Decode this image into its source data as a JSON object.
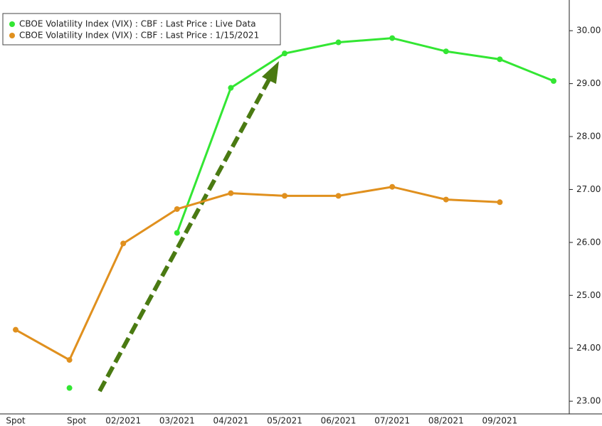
{
  "chart_data": {
    "type": "line",
    "categories": [
      "Spot",
      "Spot",
      "02/2021",
      "03/2021",
      "04/2021",
      "05/2021",
      "06/2021",
      "07/2021",
      "08/2021",
      "09/2021",
      null
    ],
    "series": [
      {
        "name": "CBOE Volatility Index (VIX) : CBF : Last Price : Live Data",
        "color": "#33e633",
        "values": [
          null,
          23.25,
          null,
          26.18,
          28.92,
          29.57,
          29.78,
          29.86,
          29.61,
          29.46,
          29.05
        ]
      },
      {
        "name": "CBOE Volatility Index (VIX) : CBF : Last Price : 1/15/2021",
        "color": "#e0901e",
        "values": [
          24.35,
          23.78,
          25.98,
          26.63,
          26.93,
          26.88,
          26.88,
          27.05,
          26.81,
          26.76,
          null
        ]
      }
    ],
    "ylim": [
      22.76,
      30.58
    ],
    "yticks": [
      {
        "value": 23,
        "label": "23.00"
      },
      {
        "value": 24,
        "label": "24.00"
      },
      {
        "value": 25,
        "label": "25.00"
      },
      {
        "value": 26,
        "label": "26.00"
      },
      {
        "value": 27,
        "label": "27.00"
      },
      {
        "value": 28,
        "label": "28.00"
      },
      {
        "value": 29,
        "label": "29.00"
      },
      {
        "value": 30,
        "label": "30.00"
      }
    ],
    "legend": "top-left"
  }
}
